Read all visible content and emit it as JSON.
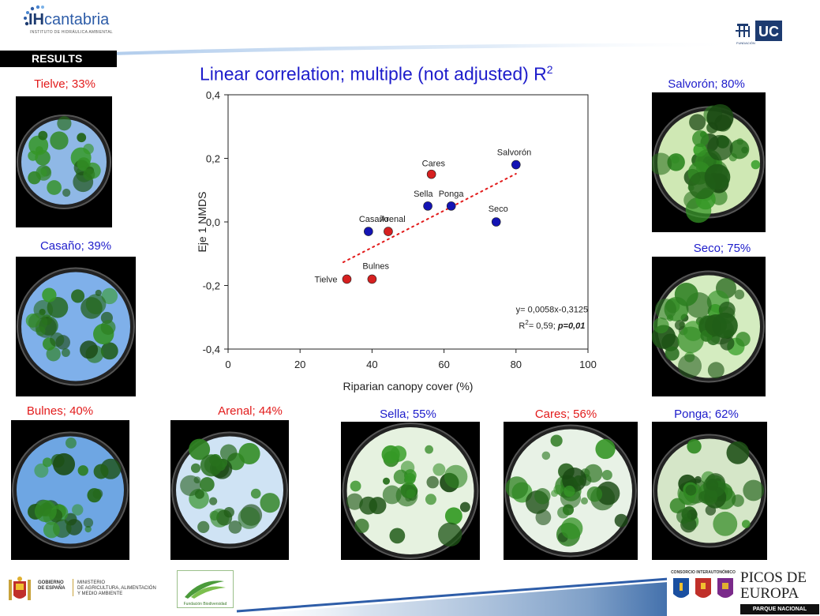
{
  "header": {
    "logo_brand_bold": "IH",
    "logo_brand_light": "cantabria",
    "logo_subtitle": "INSTITUTO DE HIDRÁULICA AMBIENTAL",
    "results_label": "RESULTS",
    "uc_text": "UC",
    "fundacion_text": "FUNDACIÓN"
  },
  "title": {
    "text": "Linear correlation; multiple (not adjusted) R",
    "superscript": "2"
  },
  "photos": [
    {
      "caption": "Tielve; 33%",
      "color": "#e21b1b",
      "sky": "#8fb8e6",
      "canopy": 0.33
    },
    {
      "caption": "Casaño; 39%",
      "color": "#1d1ccb",
      "sky": "#7fb0ea",
      "canopy": 0.39
    },
    {
      "caption": "Salvorón; 80%",
      "color": "#1d1ccb",
      "sky": "#cfe8b4",
      "canopy": 0.8
    },
    {
      "caption": "Seco; 75%",
      "color": "#1d1ccb",
      "sky": "#d4ecc0",
      "canopy": 0.75
    },
    {
      "caption": "Bulnes; 40%",
      "color": "#e21b1b",
      "sky": "#6ea6e3",
      "canopy": 0.4
    },
    {
      "caption": "Arenal; 44%",
      "color": "#e21b1b",
      "sky": "#cfe3f4",
      "canopy": 0.44
    },
    {
      "caption": "Sella; 55%",
      "color": "#1d1ccb",
      "sky": "#e6f2e0",
      "canopy": 0.55
    },
    {
      "caption": "Cares; 56%",
      "color": "#e21b1b",
      "sky": "#e8f2e6",
      "canopy": 0.56
    },
    {
      "caption": "Ponga; 62%",
      "color": "#1d1ccb",
      "sky": "#d5e6c8",
      "canopy": 0.62
    }
  ],
  "chart_data": {
    "type": "scatter",
    "title": "",
    "xlabel": "Riparian canopy cover (%)",
    "ylabel": "Eje 1 NMDS",
    "xlim": [
      0,
      100
    ],
    "ylim": [
      -0.4,
      0.4
    ],
    "xticks": [
      "0",
      "20",
      "40",
      "60",
      "80",
      "100"
    ],
    "yticks": [
      "0,4",
      "0,2",
      "0,0",
      "-0,2",
      "-0,4"
    ],
    "xtick_values": [
      0,
      20,
      40,
      60,
      80,
      100
    ],
    "ytick_values": [
      0.4,
      0.2,
      0.0,
      -0.2,
      -0.4
    ],
    "points": [
      {
        "label": "Tielve",
        "x": 33,
        "y": -0.18,
        "color": "#d62020"
      },
      {
        "label": "Casaño",
        "x": 39,
        "y": -0.03,
        "color": "#1414b4"
      },
      {
        "label": "Bulnes",
        "x": 40,
        "y": -0.18,
        "color": "#d62020"
      },
      {
        "label": "Arenal",
        "x": 44.5,
        "y": -0.03,
        "color": "#d62020"
      },
      {
        "label": "Sella",
        "x": 55.5,
        "y": 0.05,
        "color": "#1414b4"
      },
      {
        "label": "Cares",
        "x": 56.5,
        "y": 0.15,
        "color": "#d62020"
      },
      {
        "label": "Ponga",
        "x": 62,
        "y": 0.05,
        "color": "#1414b4"
      },
      {
        "label": "Seco",
        "x": 74.5,
        "y": 0.0,
        "color": "#1414b4"
      },
      {
        "label": "Salvorón",
        "x": 80,
        "y": 0.18,
        "color": "#1414b4"
      }
    ],
    "trendline": {
      "slope": 0.0058,
      "intercept": -0.3125,
      "x_range": [
        32,
        80
      ],
      "color": "#e21b1b",
      "style": "dotted"
    },
    "equation": "y= 0,0058x-0,3125",
    "r2_prefix": "R",
    "r2_sup": "2",
    "r2_value": "= 0,59; ",
    "p_value": "p=0,01"
  },
  "footer": {
    "gobierno": "GOBIERNO\nDE ESPAÑA",
    "ministerio": "MINISTERIO\nDE AGRICULTURA, ALIMENTACIÓN\nY MEDIO AMBIENTE",
    "fundacion": "Fundación Biodiversidad",
    "consorcio": "CONSORCIO INTERAUTONÓMICO",
    "picos_line1": "PICOS DE",
    "picos_line2": "EUROPA",
    "parque": "PARQUE NACIONAL"
  }
}
